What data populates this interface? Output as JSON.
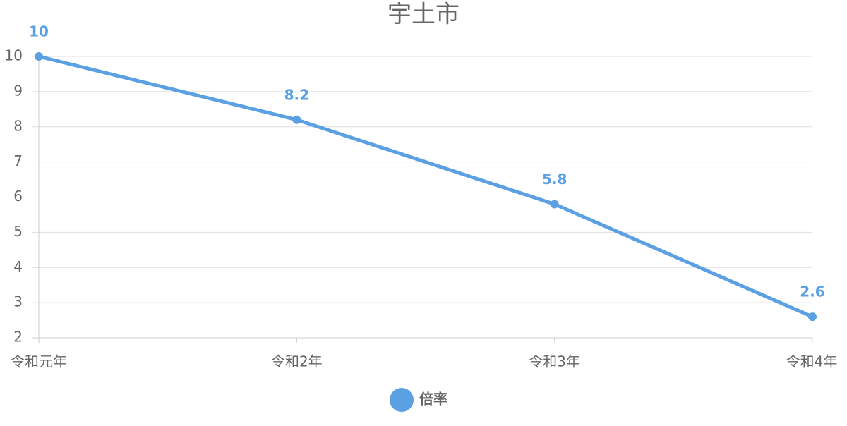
{
  "chart_data": {
    "type": "line",
    "title": "宇土市",
    "categories": [
      "令和元年",
      "令和2年",
      "令和3年",
      "令和4年"
    ],
    "series": [
      {
        "name": "倍率",
        "color": "#5aa0e3",
        "values": [
          10,
          8.2,
          5.8,
          2.6
        ]
      }
    ],
    "ylim": [
      2,
      10
    ],
    "yticks": [
      2,
      3,
      4,
      5,
      6,
      7,
      8,
      9,
      10
    ],
    "grid": true
  }
}
